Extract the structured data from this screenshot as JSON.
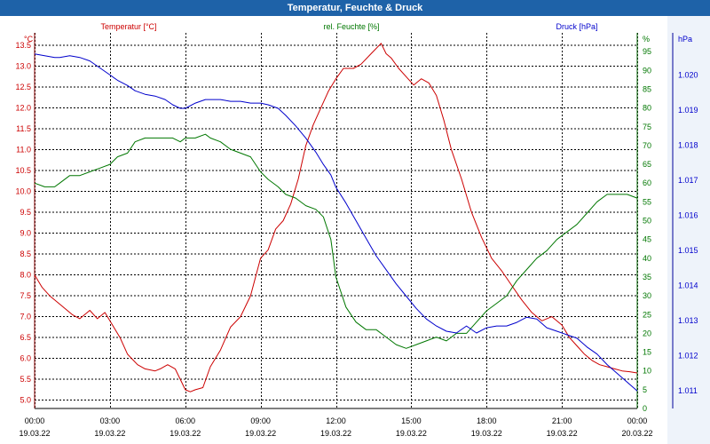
{
  "window": {
    "title": "Temperatur, Feuchte & Druck"
  },
  "chart_data": {
    "type": "line",
    "title": "Temperatur, Feuchte & Druck",
    "x_axis": {
      "range_hours": [
        0,
        24
      ],
      "ticks": [
        {
          "h": 0,
          "time": "00:00",
          "date": "19.03.22"
        },
        {
          "h": 3,
          "time": "03:00",
          "date": "19.03.22"
        },
        {
          "h": 6,
          "time": "06:00",
          "date": "19.03.22"
        },
        {
          "h": 9,
          "time": "09:00",
          "date": "19.03.22"
        },
        {
          "h": 12,
          "time": "12:00",
          "date": "19.03.22"
        },
        {
          "h": 15,
          "time": "15:00",
          "date": "19.03.22"
        },
        {
          "h": 18,
          "time": "18:00",
          "date": "19.03.22"
        },
        {
          "h": 21,
          "time": "21:00",
          "date": "19.03.22"
        },
        {
          "h": 24,
          "time": "00:00",
          "date": "20.03.22"
        }
      ]
    },
    "axes": {
      "temperature": {
        "unit": "°C",
        "min": 4.8,
        "max": 13.8,
        "ticks": [
          5.0,
          5.5,
          6.0,
          6.5,
          7.0,
          7.5,
          8.0,
          8.5,
          9.0,
          9.5,
          10.0,
          10.5,
          11.0,
          11.5,
          12.0,
          12.5,
          13.0,
          13.5
        ],
        "color": "#cc0000"
      },
      "humidity": {
        "unit": "%",
        "min": 0,
        "max": 100,
        "ticks": [
          0,
          5,
          10,
          15,
          20,
          25,
          30,
          35,
          40,
          45,
          50,
          55,
          60,
          65,
          70,
          75,
          80,
          85,
          90,
          95
        ],
        "color": "#007700"
      },
      "pressure": {
        "unit": "hPa",
        "min": 1010.5,
        "max": 1021.2,
        "ticks": [
          1011,
          1012,
          1013,
          1014,
          1015,
          1016,
          1017,
          1018,
          1019,
          1020
        ],
        "labels": [
          "1.011",
          "1.012",
          "1.013",
          "1.014",
          "1.015",
          "1.016",
          "1.017",
          "1.018",
          "1.019",
          "1.020"
        ],
        "color": "#0000cc"
      }
    },
    "grid": true,
    "series": [
      {
        "name": "Temperatur [°C]",
        "axis": "temperature",
        "color": "#cc0000",
        "x": [
          0,
          0.3,
          0.6,
          1,
          1.5,
          1.8,
          2.2,
          2.5,
          2.8,
          3.1,
          3.4,
          3.7,
          4.1,
          4.4,
          4.8,
          5,
          5.3,
          5.6,
          5.8,
          6,
          6.2,
          6.4,
          6.7,
          7,
          7.4,
          7.8,
          8.2,
          8.6,
          9,
          9.3,
          9.6,
          9.9,
          10.2,
          10.5,
          10.8,
          11.1,
          11.4,
          11.7,
          12,
          12.3,
          12.7,
          13,
          13.4,
          13.8,
          14,
          14.2,
          14.5,
          14.8,
          15.1,
          15.4,
          15.7,
          16,
          16.3,
          16.6,
          17,
          17.4,
          17.8,
          18.2,
          18.6,
          19,
          19.4,
          19.8,
          20.2,
          20.6,
          21,
          21.3,
          21.6,
          21.9,
          22.2,
          22.5,
          22.8,
          23.1,
          23.4,
          23.7,
          24
        ],
        "y": [
          8.0,
          7.7,
          7.5,
          7.3,
          7.05,
          6.95,
          7.15,
          6.95,
          7.1,
          6.8,
          6.5,
          6.1,
          5.85,
          5.75,
          5.7,
          5.75,
          5.85,
          5.75,
          5.5,
          5.25,
          5.2,
          5.25,
          5.3,
          5.8,
          6.2,
          6.75,
          7.0,
          7.5,
          8.4,
          8.6,
          9.1,
          9.3,
          9.7,
          10.3,
          11.1,
          11.6,
          12.0,
          12.4,
          12.7,
          12.95,
          12.95,
          13.05,
          13.3,
          13.55,
          13.3,
          13.2,
          12.95,
          12.75,
          12.55,
          12.7,
          12.6,
          12.3,
          11.7,
          11.0,
          10.3,
          9.5,
          8.9,
          8.4,
          8.1,
          7.75,
          7.4,
          7.1,
          6.9,
          7.0,
          6.8,
          6.5,
          6.3,
          6.1,
          5.95,
          5.85,
          5.8,
          5.75,
          5.7,
          5.68,
          5.65
        ]
      },
      {
        "name": "rel. Feuchte [%]",
        "axis": "humidity",
        "color": "#007700",
        "x": [
          0,
          0.4,
          0.8,
          1,
          1.4,
          1.8,
          2.2,
          2.6,
          3,
          3.3,
          3.7,
          4,
          4.4,
          4.8,
          5.2,
          5.5,
          5.8,
          6,
          6.4,
          6.8,
          7,
          7.4,
          7.8,
          8.2,
          8.6,
          9,
          9.3,
          9.7,
          10,
          10.4,
          10.8,
          11.2,
          11.5,
          11.8,
          12,
          12.4,
          12.8,
          13.2,
          13.6,
          14,
          14.4,
          14.8,
          15.2,
          15.6,
          16,
          16.4,
          16.8,
          17.2,
          17.6,
          18,
          18.4,
          18.8,
          19.2,
          19.6,
          20,
          20.4,
          20.8,
          21.2,
          21.6,
          22,
          22.4,
          22.8,
          23.2,
          23.6,
          24
        ],
        "y": [
          60,
          59,
          59,
          60,
          62,
          62,
          63,
          64,
          65,
          67,
          68,
          71,
          72,
          72,
          72,
          72,
          71,
          72,
          72,
          73,
          72,
          71,
          69,
          68,
          67,
          63,
          61,
          59,
          57,
          56,
          54,
          53,
          51,
          45,
          35,
          27,
          23,
          21,
          21,
          19,
          17,
          16,
          17,
          18,
          19,
          18,
          20,
          20,
          23,
          26,
          28,
          30,
          34,
          37,
          40,
          42,
          45,
          47,
          49,
          52,
          55,
          57,
          57,
          57,
          56
        ]
      },
      {
        "name": "Druck [hPa]",
        "axis": "pressure",
        "color": "#0000cc",
        "x": [
          0,
          0.4,
          0.8,
          1,
          1.4,
          1.8,
          2.2,
          2.6,
          3,
          3.3,
          3.7,
          4,
          4.4,
          4.8,
          5.2,
          5.5,
          5.8,
          6,
          6.4,
          6.8,
          7,
          7.4,
          7.8,
          8.2,
          8.6,
          9,
          9.3,
          9.7,
          10,
          10.4,
          10.8,
          11.2,
          11.5,
          11.8,
          12,
          12.4,
          12.8,
          13.2,
          13.6,
          14,
          14.4,
          14.8,
          15.2,
          15.6,
          16,
          16.4,
          16.8,
          17.2,
          17.6,
          18,
          18.4,
          18.8,
          19.2,
          19.6,
          20,
          20.4,
          20.8,
          21.2,
          21.6,
          22,
          22.4,
          22.8,
          23.2,
          23.6,
          24
        ],
        "y": [
          1020.6,
          1020.55,
          1020.5,
          1020.5,
          1020.55,
          1020.5,
          1020.4,
          1020.2,
          1020.0,
          1019.85,
          1019.7,
          1019.55,
          1019.45,
          1019.4,
          1019.3,
          1019.15,
          1019.05,
          1019.05,
          1019.2,
          1019.3,
          1019.3,
          1019.3,
          1019.25,
          1019.25,
          1019.2,
          1019.2,
          1019.15,
          1019.05,
          1018.85,
          1018.55,
          1018.2,
          1017.8,
          1017.45,
          1017.15,
          1016.8,
          1016.35,
          1015.85,
          1015.35,
          1014.85,
          1014.45,
          1014.05,
          1013.7,
          1013.35,
          1013.05,
          1012.85,
          1012.7,
          1012.65,
          1012.85,
          1012.65,
          1012.8,
          1012.85,
          1012.85,
          1012.95,
          1013.1,
          1013.05,
          1012.8,
          1012.7,
          1012.6,
          1012.5,
          1012.25,
          1012.05,
          1011.75,
          1011.5,
          1011.25,
          1011.0
        ]
      }
    ]
  }
}
